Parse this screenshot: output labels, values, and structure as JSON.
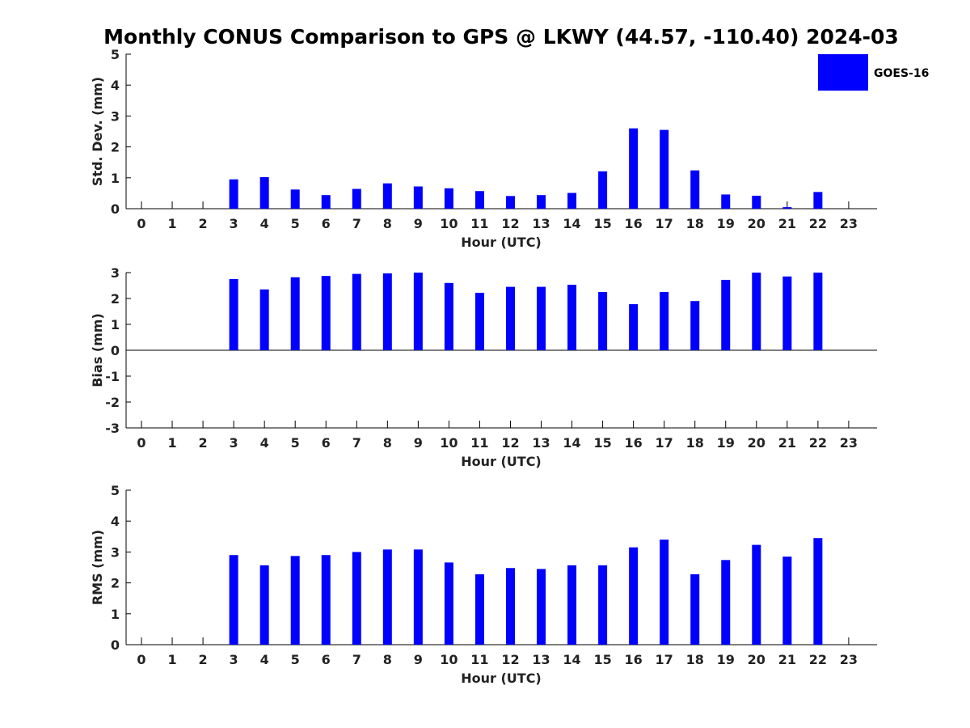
{
  "figure": {
    "title": "Monthly CONUS Comparison to GPS @ LKWY (44.57, -110.40) 2024-03",
    "legend_label": "GOES-16",
    "legend_placement": "top-right",
    "bar_color": "#0000ff"
  },
  "chart_data": [
    {
      "type": "bar",
      "categories": [
        "0",
        "1",
        "2",
        "3",
        "4",
        "5",
        "6",
        "7",
        "8",
        "9",
        "10",
        "11",
        "12",
        "13",
        "14",
        "15",
        "16",
        "17",
        "18",
        "19",
        "20",
        "21",
        "22",
        "23"
      ],
      "xlabel": "Hour (UTC)",
      "ylabel": "Std. Dev. (mm)",
      "ylim": [
        0,
        5
      ],
      "yticks": [
        "0",
        "1",
        "2",
        "3",
        "4",
        "5"
      ],
      "series": [
        {
          "name": "GOES-16",
          "values": [
            null,
            null,
            null,
            0.95,
            1.02,
            0.62,
            0.44,
            0.64,
            0.82,
            0.72,
            0.66,
            0.57,
            0.41,
            0.44,
            0.51,
            1.21,
            2.6,
            2.55,
            1.24,
            0.46,
            0.42,
            0.05,
            0.54,
            null
          ]
        }
      ]
    },
    {
      "type": "bar",
      "categories": [
        "0",
        "1",
        "2",
        "3",
        "4",
        "5",
        "6",
        "7",
        "8",
        "9",
        "10",
        "11",
        "12",
        "13",
        "14",
        "15",
        "16",
        "17",
        "18",
        "19",
        "20",
        "21",
        "22",
        "23"
      ],
      "xlabel": "Hour (UTC)",
      "ylabel": "Bias (mm)",
      "ylim": [
        -3,
        3
      ],
      "yticks": [
        "-3",
        "-2",
        "-1",
        "0",
        "1",
        "2",
        "3"
      ],
      "series": [
        {
          "name": "GOES-16",
          "values": [
            null,
            null,
            null,
            2.75,
            2.35,
            2.82,
            2.87,
            2.95,
            2.97,
            3.0,
            2.6,
            2.22,
            2.45,
            2.45,
            2.53,
            2.25,
            1.78,
            2.25,
            1.9,
            2.72,
            3.0,
            2.85,
            3.0,
            null
          ]
        }
      ]
    },
    {
      "type": "bar",
      "categories": [
        "0",
        "1",
        "2",
        "3",
        "4",
        "5",
        "6",
        "7",
        "8",
        "9",
        "10",
        "11",
        "12",
        "13",
        "14",
        "15",
        "16",
        "17",
        "18",
        "19",
        "20",
        "21",
        "22",
        "23"
      ],
      "xlabel": "Hour (UTC)",
      "ylabel": "RMS (mm)",
      "ylim": [
        0,
        5
      ],
      "yticks": [
        "0",
        "1",
        "2",
        "3",
        "4",
        "5"
      ],
      "series": [
        {
          "name": "GOES-16",
          "values": [
            null,
            null,
            null,
            2.9,
            2.57,
            2.87,
            2.9,
            3.0,
            3.08,
            3.08,
            2.66,
            2.28,
            2.48,
            2.45,
            2.57,
            2.57,
            3.15,
            3.4,
            2.28,
            2.74,
            3.23,
            2.85,
            3.45,
            null
          ]
        }
      ]
    }
  ]
}
